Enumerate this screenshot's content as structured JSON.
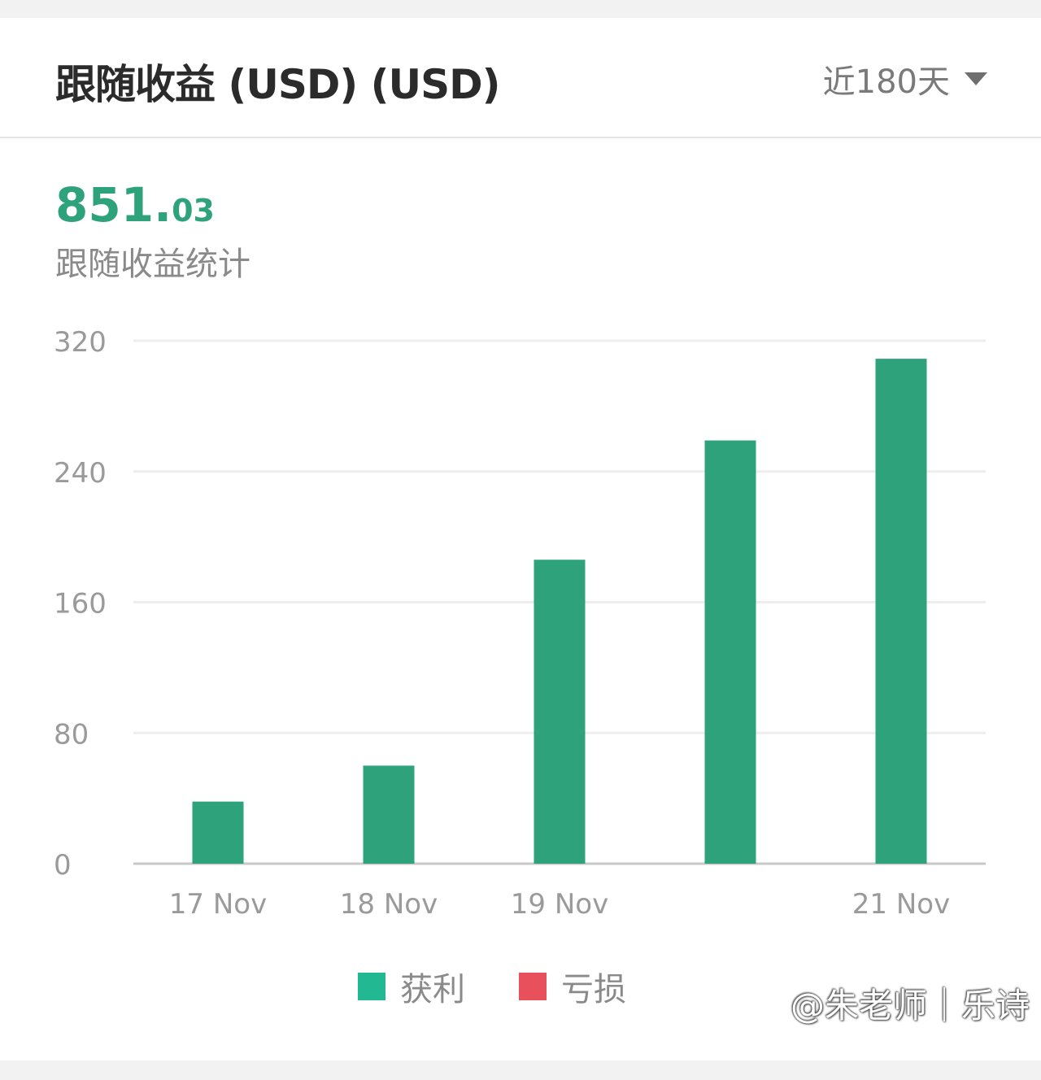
{
  "header": {
    "title": "跟随收益 (USD) (USD)",
    "range_label": "近180天"
  },
  "summary": {
    "total_int": "851.",
    "total_dec": "03",
    "label": "跟随收益统计"
  },
  "colors": {
    "profit": "#2ea37b",
    "legend_profit": "#22b891",
    "loss": "#e8505b",
    "accent": "#2ea37b"
  },
  "legend": {
    "profit": "获利",
    "loss": "亏损"
  },
  "watermark": "@朱老师｜乐诗",
  "chart_data": {
    "type": "bar",
    "categories": [
      "17 Nov",
      "18 Nov",
      "19 Nov",
      "",
      "21 Nov"
    ],
    "series": [
      {
        "name": "获利",
        "values": [
          38,
          60,
          186,
          259,
          309
        ]
      },
      {
        "name": "亏损",
        "values": [
          0,
          0,
          0,
          0,
          0
        ]
      }
    ],
    "yticks": [
      0,
      80,
      160,
      240,
      320
    ],
    "ylim": [
      0,
      320
    ],
    "grid": true,
    "legend_position": "bottom"
  }
}
